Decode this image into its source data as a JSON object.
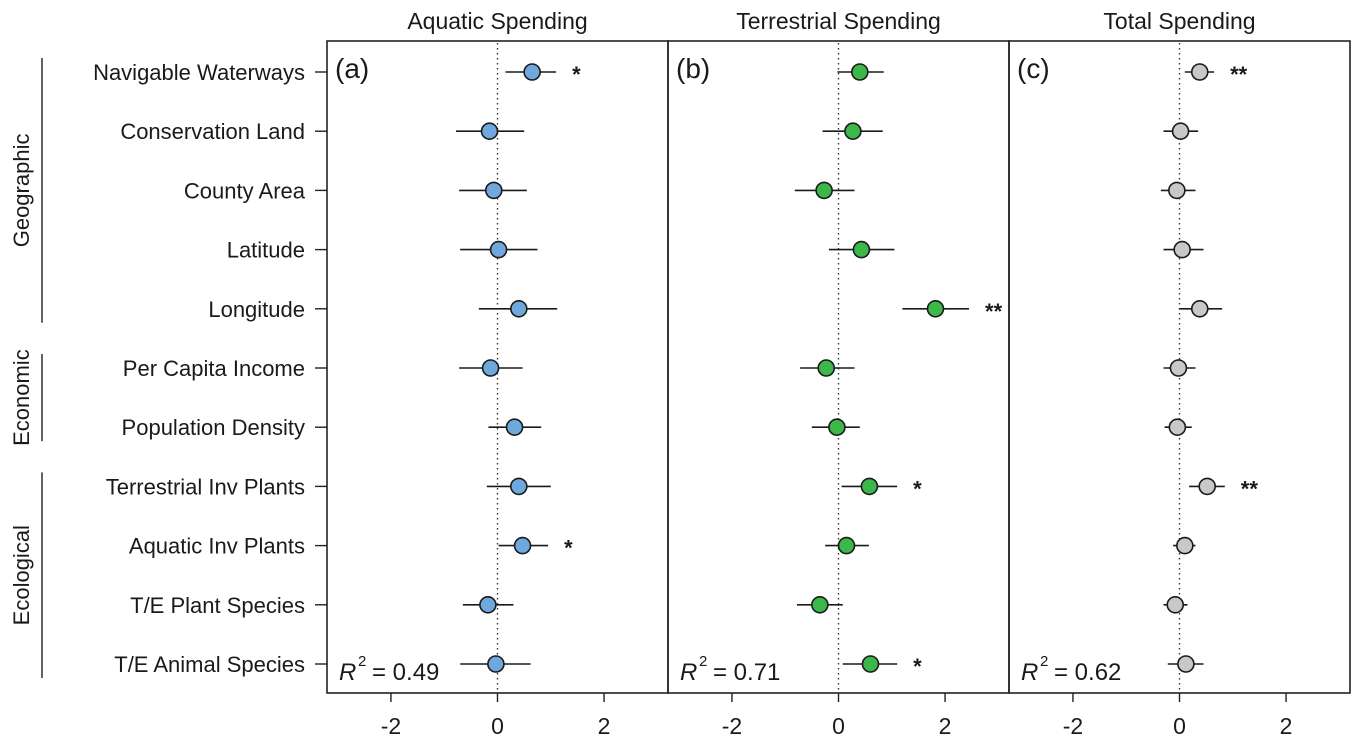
{
  "chart_data": {
    "type": "scatter",
    "variables": [
      "Navigable Waterways",
      "Conservation Land",
      "County Area",
      "Latitude",
      "Longitude",
      "Per Capita Income",
      "Population Density",
      "Terrestrial Inv Plants",
      "Aquatic Inv Plants",
      "T/E Plant Species",
      "T/E Animal Species"
    ],
    "groups": [
      {
        "label": "Geographic",
        "from": 0,
        "to": 4
      },
      {
        "label": "Economic",
        "from": 5,
        "to": 6
      },
      {
        "label": "Ecological",
        "from": 7,
        "to": 10
      }
    ],
    "xlim": [
      -3.2,
      3.2
    ],
    "xticks": [
      -2,
      0,
      2
    ],
    "xtick_labels": [
      "-2",
      "0",
      "2"
    ],
    "grid": false,
    "zero_reference_line": true,
    "panels": [
      {
        "title": "Aquatic Spending",
        "tag": "(a)",
        "r2_prefix": "R",
        "r2_sup": "2",
        "r2_value": "= 0.49",
        "color": "#6fa8dc",
        "estimates": [
          0.65,
          -0.15,
          -0.07,
          0.02,
          0.4,
          -0.13,
          0.32,
          0.4,
          0.47,
          -0.18,
          -0.03
        ],
        "ci_low": [
          0.15,
          -0.78,
          -0.72,
          -0.7,
          -0.35,
          -0.72,
          -0.17,
          -0.2,
          0.02,
          -0.65,
          -0.7
        ],
        "ci_high": [
          1.1,
          0.5,
          0.55,
          0.75,
          1.12,
          0.47,
          0.82,
          1.0,
          0.95,
          0.3,
          0.62
        ],
        "significance": [
          "*",
          "",
          "",
          "",
          "",
          "",
          "",
          "",
          "*",
          "",
          ""
        ]
      },
      {
        "title": "Terrestrial Spending",
        "tag": "(b)",
        "r2_prefix": "R",
        "r2_sup": "2",
        "r2_value": "= 0.71",
        "color": "#3cb84a",
        "estimates": [
          0.4,
          0.27,
          -0.27,
          0.43,
          1.82,
          -0.23,
          -0.03,
          0.58,
          0.15,
          -0.35,
          0.6
        ],
        "ci_low": [
          -0.02,
          -0.3,
          -0.82,
          -0.18,
          1.2,
          -0.72,
          -0.5,
          0.06,
          -0.25,
          -0.78,
          0.08
        ],
        "ci_high": [
          0.85,
          0.83,
          0.3,
          1.05,
          2.45,
          0.3,
          0.4,
          1.1,
          0.57,
          0.08,
          1.1
        ],
        "significance": [
          "",
          "",
          "",
          "",
          "**",
          "",
          "",
          "*",
          "",
          "",
          "*"
        ]
      },
      {
        "title": "Total Spending",
        "tag": "(c)",
        "r2_prefix": "R",
        "r2_sup": "2",
        "r2_value": "= 0.62",
        "color": "#c8c8c8",
        "estimates": [
          0.38,
          0.02,
          -0.05,
          0.05,
          0.38,
          -0.02,
          -0.04,
          0.52,
          0.1,
          -0.08,
          0.12
        ],
        "ci_low": [
          0.1,
          -0.3,
          -0.35,
          -0.3,
          0.0,
          -0.3,
          -0.28,
          0.18,
          -0.12,
          -0.3,
          -0.22
        ],
        "ci_high": [
          0.65,
          0.35,
          0.3,
          0.45,
          0.8,
          0.3,
          0.23,
          0.85,
          0.3,
          0.15,
          0.45
        ],
        "significance": [
          "**",
          "",
          "",
          "",
          "",
          "",
          "",
          "**",
          "",
          "",
          ""
        ]
      }
    ]
  }
}
